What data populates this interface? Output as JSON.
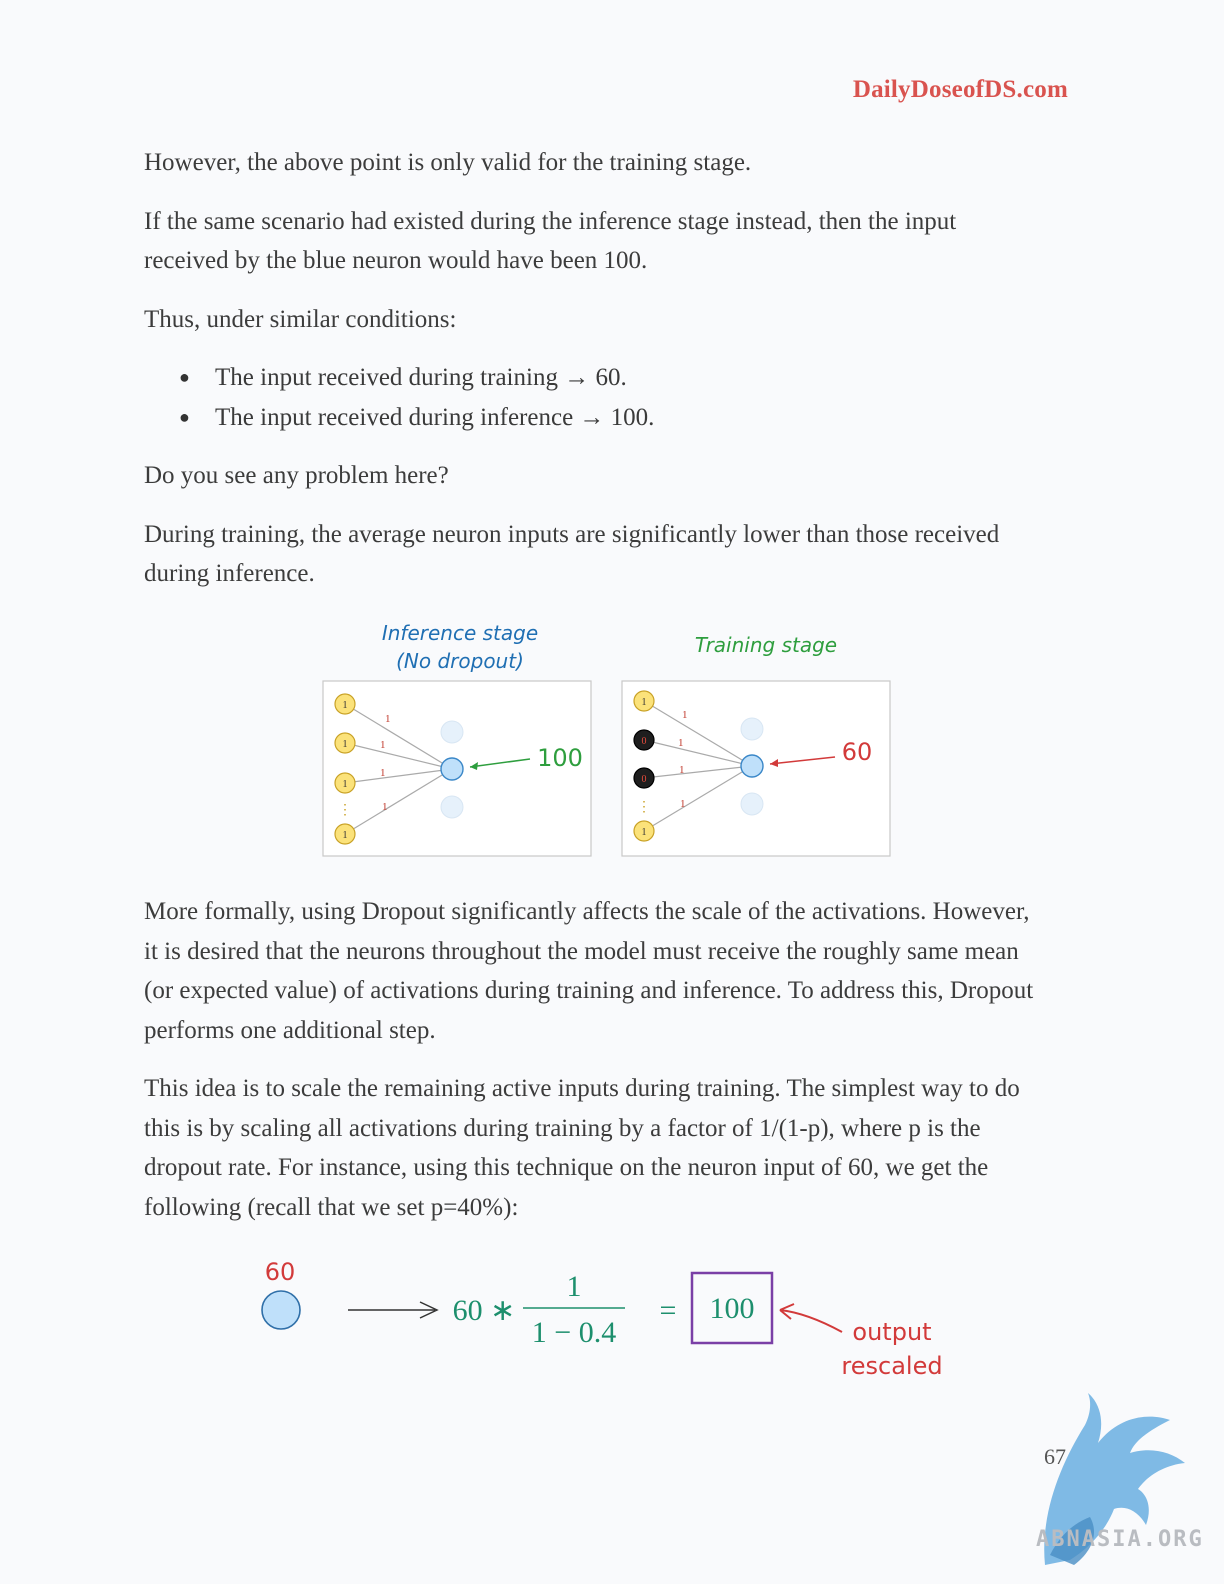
{
  "header": {
    "site": "DailyDoseofDS.com"
  },
  "paragraphs": {
    "p1": "However, the above point is only valid for the training stage.",
    "p2": "If the same scenario had existed during the inference stage instead, then the input received by the blue neuron would have been 100.",
    "p3": "Thus, under similar conditions:",
    "bullets": [
      "The input received during training → 60.",
      "The input received during inference → 100."
    ],
    "p4": "Do you see any problem here?",
    "p5": "During training, the average neuron inputs are significantly lower than those received during inference.",
    "p6": "More formally, using Dropout significantly affects the scale of the activations. However, it is desired that the neurons throughout the model must receive the roughly same mean (or expected value) of activations during training and inference. To address this, Dropout performs one additional step.",
    "p7": "This idea is to scale the remaining active inputs during training. The simplest way to do this is by scaling all activations during training by a factor of 1/(1-p), where p is the dropout rate. For instance, using this technique on the neuron input of 60, we get the following (recall that we set p=40%):"
  },
  "figure_dropout": {
    "inference_title_line1": "Inference stage",
    "inference_title_line2": "(No dropout)",
    "training_title": "Training stage",
    "inference_value": "100",
    "training_value": "60",
    "weight_label": "1",
    "input_one": "1",
    "input_zero": "0",
    "ellipsis": "⋮",
    "colors": {
      "blue_title": "#1f6fb3",
      "green": "#2e9e3e",
      "red": "#d23a3a",
      "neuron": "#bfe0fa",
      "input": "#fbe27a"
    }
  },
  "figure_rescale": {
    "input_label": "60",
    "lhs": "60 ∗",
    "numerator": "1",
    "denominator": "1 − 0.4",
    "equals": "=",
    "result": "100",
    "annotation_line1": "output",
    "annotation_line2": "rescaled",
    "colors": {
      "teal": "#1d8f6d",
      "red": "#d23a3a",
      "purple": "#7a3fa6"
    }
  },
  "footer": {
    "page_number": "67",
    "watermark": "ABNASIA.ORG"
  }
}
